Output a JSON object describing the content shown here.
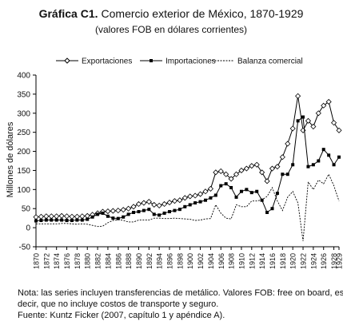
{
  "chart_data": {
    "type": "line",
    "title_label": "Gráfica C1.",
    "title": "Comercio exterior de México, 1870-1929",
    "subtitle": "(valores FOB en dólares corrientes)",
    "ylabel": "Millones de dólares",
    "notes": [
      "Nota: las series incluyen transferencias de metálico. Valores FOB: free on board, es",
      "decir, que no incluye costos de transporte y seguro.",
      "Fuente: Kuntz Ficker (2007, capítulo 1 y apéndice A)."
    ],
    "x": [
      1870,
      1871,
      1872,
      1873,
      1874,
      1875,
      1876,
      1877,
      1878,
      1879,
      1880,
      1881,
      1882,
      1883,
      1884,
      1885,
      1886,
      1887,
      1888,
      1889,
      1890,
      1891,
      1892,
      1893,
      1894,
      1895,
      1896,
      1897,
      1898,
      1899,
      1900,
      1901,
      1902,
      1903,
      1904,
      1905,
      1906,
      1907,
      1908,
      1909,
      1910,
      1911,
      1912,
      1913,
      1914,
      1915,
      1916,
      1917,
      1918,
      1919,
      1920,
      1921,
      1922,
      1923,
      1924,
      1925,
      1926,
      1927,
      1928,
      1929
    ],
    "xlim": [
      1870,
      1929
    ],
    "xticks": [
      1870,
      1872,
      1874,
      1876,
      1878,
      1880,
      1882,
      1884,
      1886,
      1888,
      1890,
      1892,
      1894,
      1896,
      1898,
      1900,
      1902,
      1904,
      1906,
      1908,
      1910,
      1912,
      1914,
      1916,
      1918,
      1920,
      1922,
      1924,
      1926,
      1928,
      1929
    ],
    "ylim": [
      -50,
      400
    ],
    "yticks": [
      -50,
      0,
      50,
      100,
      150,
      200,
      250,
      300,
      350,
      400
    ],
    "series": [
      {
        "name": "Exportaciones",
        "color": "#000000",
        "marker": "diamond",
        "values": [
          28,
          29,
          30,
          30,
          30,
          31,
          30,
          29,
          29,
          30,
          31,
          34,
          38,
          42,
          43,
          44,
          45,
          47,
          50,
          55,
          62,
          65,
          68,
          60,
          58,
          62,
          66,
          70,
          72,
          78,
          82,
          84,
          88,
          95,
          102,
          145,
          148,
          140,
          128,
          140,
          150,
          155,
          162,
          165,
          145,
          122,
          155,
          160,
          185,
          220,
          260,
          345,
          255,
          280,
          265,
          300,
          320,
          330,
          275,
          255
        ]
      },
      {
        "name": "Importaciones",
        "color": "#000000",
        "marker": "square",
        "values": [
          18,
          19,
          20,
          20,
          20,
          20,
          19,
          19,
          20,
          20,
          22,
          28,
          35,
          38,
          30,
          25,
          24,
          28,
          35,
          40,
          42,
          45,
          48,
          35,
          33,
          38,
          42,
          45,
          48,
          55,
          60,
          65,
          68,
          72,
          78,
          85,
          110,
          115,
          105,
          80,
          95,
          100,
          92,
          95,
          72,
          40,
          50,
          90,
          140,
          140,
          165,
          280,
          290,
          160,
          165,
          175,
          205,
          190,
          165,
          185
        ]
      },
      {
        "name": "Balanza comercial",
        "color": "#000000",
        "dash": true,
        "values": [
          10,
          10,
          10,
          10,
          10,
          11,
          11,
          10,
          9,
          10,
          9,
          6,
          3,
          4,
          13,
          19,
          21,
          19,
          15,
          15,
          20,
          20,
          20,
          25,
          25,
          24,
          24,
          25,
          24,
          23,
          22,
          19,
          20,
          23,
          24,
          60,
          38,
          25,
          23,
          60,
          55,
          55,
          70,
          70,
          73,
          82,
          105,
          70,
          45,
          80,
          95,
          65,
          -35,
          120,
          100,
          125,
          115,
          140,
          110,
          70
        ]
      }
    ]
  }
}
